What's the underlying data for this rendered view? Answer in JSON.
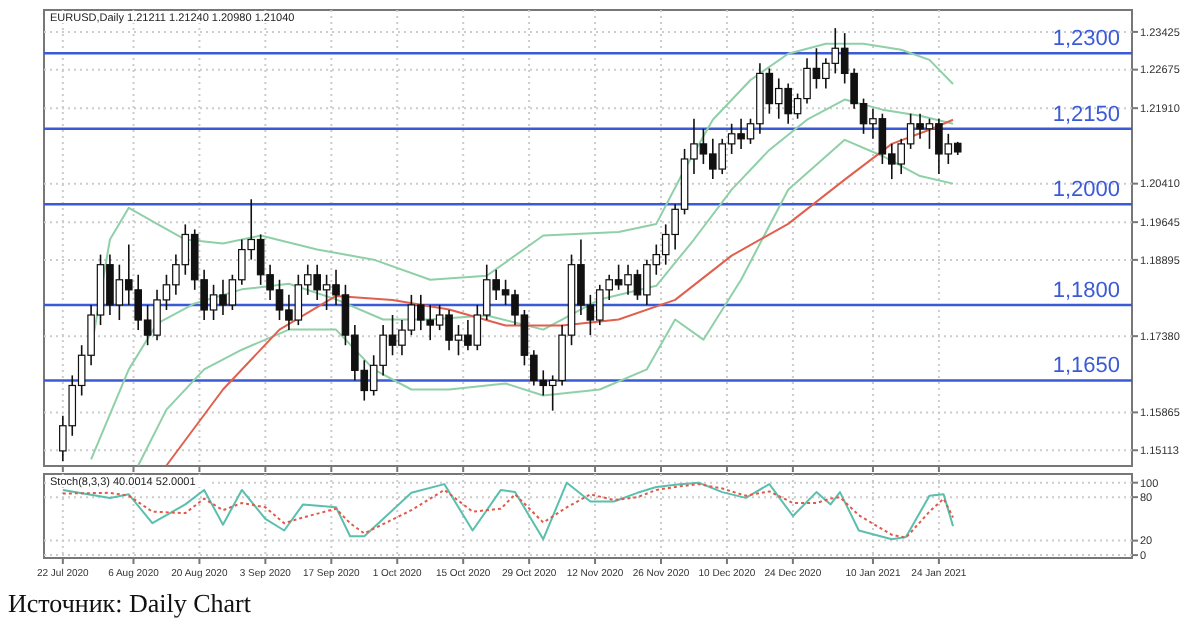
{
  "chart_data": [
    {
      "type": "candlestick",
      "title": "EURUSD,Daily 1.21211 1.21240 1.20980 1.21040",
      "x": [
        "2020-07-22",
        "2020-07-24",
        "2020-07-26",
        "2020-07-28",
        "2020-07-30",
        "2020-08-01",
        "2020-08-03",
        "2020-08-05",
        "2020-08-07",
        "2020-08-09",
        "2020-08-11",
        "2020-08-13",
        "2020-08-15",
        "2020-08-17",
        "2020-08-19",
        "2020-08-21",
        "2020-08-23",
        "2020-08-25",
        "2020-08-27",
        "2020-08-29",
        "2020-08-31",
        "2020-09-02",
        "2020-09-04",
        "2020-09-06",
        "2020-09-08",
        "2020-09-10",
        "2020-09-12",
        "2020-09-14",
        "2020-09-16",
        "2020-09-18",
        "2020-09-20",
        "2020-09-22",
        "2020-09-24",
        "2020-09-26",
        "2020-09-28",
        "2020-09-30",
        "2020-10-02",
        "2020-10-04",
        "2020-10-06",
        "2020-10-08",
        "2020-10-10",
        "2020-10-12",
        "2020-10-14",
        "2020-10-16",
        "2020-10-18",
        "2020-10-20",
        "2020-10-22",
        "2020-10-24",
        "2020-10-26",
        "2020-10-28",
        "2020-10-30",
        "2020-11-01",
        "2020-11-03",
        "2020-11-05",
        "2020-11-07",
        "2020-11-09",
        "2020-11-11",
        "2020-11-13",
        "2020-11-15",
        "2020-11-17",
        "2020-11-19",
        "2020-11-21",
        "2020-11-23",
        "2020-11-25",
        "2020-11-27",
        "2020-11-29",
        "2020-12-01",
        "2020-12-03",
        "2020-12-05",
        "2020-12-07",
        "2020-12-09",
        "2020-12-11",
        "2020-12-13",
        "2020-12-15",
        "2020-12-17",
        "2020-12-19",
        "2020-12-21",
        "2020-12-23",
        "2020-12-25",
        "2020-12-27",
        "2020-12-29",
        "2020-12-31",
        "2021-01-02",
        "2021-01-04",
        "2021-01-06",
        "2021-01-08",
        "2021-01-10",
        "2021-01-12",
        "2021-01-14",
        "2021-01-16",
        "2021-01-18",
        "2021-01-20",
        "2021-01-22",
        "2021-01-24",
        "2021-01-26",
        "2021-01-28"
      ],
      "ohlc": [
        [
          1.151,
          1.158,
          1.149,
          1.156
        ],
        [
          1.156,
          1.166,
          1.154,
          1.164
        ],
        [
          1.164,
          1.172,
          1.162,
          1.17
        ],
        [
          1.17,
          1.18,
          1.168,
          1.178
        ],
        [
          1.178,
          1.19,
          1.176,
          1.188
        ],
        [
          1.188,
          1.19,
          1.178,
          1.18
        ],
        [
          1.18,
          1.188,
          1.177,
          1.185
        ],
        [
          1.185,
          1.192,
          1.18,
          1.183
        ],
        [
          1.183,
          1.186,
          1.175,
          1.177
        ],
        [
          1.177,
          1.18,
          1.172,
          1.174
        ],
        [
          1.174,
          1.183,
          1.173,
          1.181
        ],
        [
          1.181,
          1.186,
          1.179,
          1.184
        ],
        [
          1.184,
          1.19,
          1.182,
          1.188
        ],
        [
          1.188,
          1.196,
          1.186,
          1.194
        ],
        [
          1.194,
          1.195,
          1.183,
          1.185
        ],
        [
          1.185,
          1.187,
          1.177,
          1.179
        ],
        [
          1.179,
          1.184,
          1.177,
          1.182
        ],
        [
          1.182,
          1.185,
          1.178,
          1.18
        ],
        [
          1.18,
          1.186,
          1.179,
          1.185
        ],
        [
          1.185,
          1.193,
          1.184,
          1.191
        ],
        [
          1.191,
          1.201,
          1.189,
          1.193
        ],
        [
          1.193,
          1.194,
          1.184,
          1.186
        ],
        [
          1.186,
          1.188,
          1.181,
          1.183
        ],
        [
          1.183,
          1.185,
          1.177,
          1.179
        ],
        [
          1.179,
          1.182,
          1.175,
          1.177
        ],
        [
          1.177,
          1.186,
          1.176,
          1.184
        ],
        [
          1.184,
          1.188,
          1.182,
          1.186
        ],
        [
          1.186,
          1.188,
          1.181,
          1.183
        ],
        [
          1.183,
          1.186,
          1.179,
          1.184
        ],
        [
          1.184,
          1.187,
          1.18,
          1.182
        ],
        [
          1.182,
          1.184,
          1.172,
          1.174
        ],
        [
          1.174,
          1.176,
          1.165,
          1.167
        ],
        [
          1.167,
          1.169,
          1.161,
          1.163
        ],
        [
          1.163,
          1.17,
          1.162,
          1.168
        ],
        [
          1.168,
          1.176,
          1.166,
          1.174
        ],
        [
          1.174,
          1.178,
          1.17,
          1.172
        ],
        [
          1.172,
          1.177,
          1.17,
          1.175
        ],
        [
          1.175,
          1.182,
          1.174,
          1.18
        ],
        [
          1.18,
          1.182,
          1.175,
          1.177
        ],
        [
          1.177,
          1.18,
          1.173,
          1.176
        ],
        [
          1.176,
          1.18,
          1.175,
          1.178
        ],
        [
          1.178,
          1.179,
          1.171,
          1.173
        ],
        [
          1.173,
          1.176,
          1.17,
          1.174
        ],
        [
          1.174,
          1.177,
          1.171,
          1.172
        ],
        [
          1.172,
          1.18,
          1.171,
          1.178
        ],
        [
          1.178,
          1.188,
          1.177,
          1.185
        ],
        [
          1.185,
          1.187,
          1.181,
          1.183
        ],
        [
          1.183,
          1.185,
          1.18,
          1.182
        ],
        [
          1.182,
          1.183,
          1.176,
          1.178
        ],
        [
          1.178,
          1.179,
          1.168,
          1.17
        ],
        [
          1.17,
          1.171,
          1.164,
          1.165
        ],
        [
          1.165,
          1.167,
          1.162,
          1.164
        ],
        [
          1.164,
          1.166,
          1.159,
          1.165
        ],
        [
          1.165,
          1.176,
          1.164,
          1.174
        ],
        [
          1.174,
          1.19,
          1.172,
          1.188
        ],
        [
          1.188,
          1.193,
          1.178,
          1.18
        ],
        [
          1.18,
          1.182,
          1.174,
          1.177
        ],
        [
          1.177,
          1.184,
          1.176,
          1.183
        ],
        [
          1.183,
          1.186,
          1.181,
          1.185
        ],
        [
          1.185,
          1.188,
          1.183,
          1.184
        ],
        [
          1.184,
          1.188,
          1.182,
          1.186
        ],
        [
          1.186,
          1.187,
          1.181,
          1.182
        ],
        [
          1.182,
          1.189,
          1.18,
          1.188
        ],
        [
          1.188,
          1.192,
          1.186,
          1.19
        ],
        [
          1.19,
          1.196,
          1.188,
          1.194
        ],
        [
          1.194,
          1.2,
          1.191,
          1.199
        ],
        [
          1.199,
          1.211,
          1.198,
          1.209
        ],
        [
          1.209,
          1.217,
          1.206,
          1.212
        ],
        [
          1.212,
          1.215,
          1.208,
          1.21
        ],
        [
          1.21,
          1.213,
          1.205,
          1.207
        ],
        [
          1.207,
          1.213,
          1.206,
          1.212
        ],
        [
          1.212,
          1.216,
          1.21,
          1.214
        ],
        [
          1.214,
          1.217,
          1.211,
          1.213
        ],
        [
          1.213,
          1.217,
          1.212,
          1.216
        ],
        [
          1.216,
          1.228,
          1.214,
          1.226
        ],
        [
          1.226,
          1.227,
          1.218,
          1.22
        ],
        [
          1.22,
          1.225,
          1.217,
          1.223
        ],
        [
          1.223,
          1.224,
          1.216,
          1.218
        ],
        [
          1.218,
          1.222,
          1.217,
          1.221
        ],
        [
          1.221,
          1.229,
          1.22,
          1.227
        ],
        [
          1.227,
          1.231,
          1.223,
          1.225
        ],
        [
          1.225,
          1.229,
          1.223,
          1.228
        ],
        [
          1.228,
          1.235,
          1.226,
          1.231
        ],
        [
          1.231,
          1.234,
          1.224,
          1.226
        ],
        [
          1.226,
          1.227,
          1.219,
          1.22
        ],
        [
          1.22,
          1.221,
          1.214,
          1.216
        ],
        [
          1.216,
          1.219,
          1.213,
          1.217
        ],
        [
          1.217,
          1.218,
          1.208,
          1.21
        ],
        [
          1.21,
          1.212,
          1.205,
          1.208
        ],
        [
          1.208,
          1.213,
          1.206,
          1.212
        ],
        [
          1.212,
          1.218,
          1.211,
          1.216
        ],
        [
          1.216,
          1.218,
          1.213,
          1.215
        ],
        [
          1.215,
          1.217,
          1.211,
          1.216
        ],
        [
          1.216,
          1.217,
          1.206,
          1.21
        ],
        [
          1.21,
          1.214,
          1.208,
          1.212
        ],
        [
          1.21211,
          1.2124,
          1.2098,
          1.2104
        ]
      ],
      "series": [
        {
          "type": "line",
          "color": "#8fd0a8",
          "x": [
            "2020-07-28",
            "2020-08-01",
            "2020-08-05",
            "2020-08-11",
            "2020-08-17",
            "2020-08-25",
            "2020-09-02",
            "2020-09-14",
            "2020-09-26",
            "2020-10-08",
            "2020-10-20",
            "2020-11-01",
            "2020-11-17",
            "2020-11-25",
            "2020-12-01",
            "2020-12-07",
            "2020-12-15",
            "2020-12-23",
            "2020-12-31",
            "2021-01-08",
            "2021-01-16",
            "2021-01-22",
            "2021-01-27"
          ],
          "values": [
            1.1711,
            1.193,
            1.1993,
            1.1961,
            1.193,
            1.1922,
            1.1938,
            1.191,
            1.189,
            1.185,
            1.1858,
            1.1938,
            1.1945,
            1.1961,
            1.2069,
            1.2168,
            1.2247,
            1.2299,
            1.2319,
            1.2319,
            1.2307,
            1.2287,
            1.2239
          ]
        },
        {
          "type": "line",
          "color": "#8fd0a8",
          "x": [
            "2020-07-28",
            "2020-08-05",
            "2020-08-11",
            "2020-08-19",
            "2020-08-29",
            "2020-09-08",
            "2020-09-18",
            "2020-09-28",
            "2020-10-08",
            "2020-10-20",
            "2020-11-01",
            "2020-11-13",
            "2020-11-25",
            "2020-12-03",
            "2020-12-11",
            "2020-12-19",
            "2020-12-27",
            "2021-01-04",
            "2021-01-12",
            "2021-01-20",
            "2021-01-27"
          ],
          "values": [
            1.1493,
            1.1672,
            1.1763,
            1.1803,
            1.1831,
            1.1842,
            1.1811,
            1.1771,
            1.1771,
            1.1779,
            1.1751,
            1.1811,
            1.1838,
            1.193,
            1.2029,
            1.2108,
            1.2168,
            1.2208,
            1.2188,
            1.2176,
            1.216
          ]
        },
        {
          "type": "line",
          "color": "#8fd0a8",
          "x": [
            "2020-08-07",
            "2020-08-13",
            "2020-08-21",
            "2020-08-29",
            "2020-09-08",
            "2020-09-18",
            "2020-09-26",
            "2020-10-04",
            "2020-10-12",
            "2020-10-24",
            "2020-11-01",
            "2020-11-13",
            "2020-11-23",
            "2020-11-29",
            "2020-12-05",
            "2020-12-13",
            "2020-12-23",
            "2021-01-04",
            "2021-01-12",
            "2021-01-20",
            "2021-01-27"
          ],
          "values": [
            1.1481,
            1.1592,
            1.1672,
            1.1711,
            1.1751,
            1.1751,
            1.1672,
            1.1632,
            1.1632,
            1.1644,
            1.162,
            1.1632,
            1.1672,
            1.1771,
            1.1731,
            1.185,
            1.2029,
            1.2128,
            1.2096,
            1.2056,
            1.2041
          ]
        },
        {
          "type": "line",
          "color": "#e0604f",
          "x": [
            "2020-08-13",
            "2020-08-25",
            "2020-09-06",
            "2020-09-18",
            "2020-09-30",
            "2020-10-12",
            "2020-10-24",
            "2020-11-05",
            "2020-11-17",
            "2020-11-29",
            "2020-12-11",
            "2020-12-23",
            "2021-01-04",
            "2021-01-14",
            "2021-01-22",
            "2021-01-27"
          ],
          "values": [
            1.1481,
            1.1632,
            1.1751,
            1.1818,
            1.181,
            1.1791,
            1.1759,
            1.1759,
            1.1771,
            1.181,
            1.1898,
            1.1961,
            1.2049,
            1.212,
            1.2148,
            1.2168
          ]
        }
      ],
      "xlim": [
        "2020-07-18",
        "2021-03-06"
      ],
      "xticks": [
        {
          "value": "2020-07-22",
          "label": null
        },
        {
          "value": "2020-08-06",
          "label": null
        },
        {
          "value": "2020-08-20",
          "label": null
        },
        {
          "value": "2020-09-03",
          "label": null
        },
        {
          "value": "2020-09-17",
          "label": null
        },
        {
          "value": "2020-10-01",
          "label": null
        },
        {
          "value": "2020-10-15",
          "label": null
        },
        {
          "value": "2020-10-29",
          "label": null
        },
        {
          "value": "2020-11-12",
          "label": null
        },
        {
          "value": "2020-11-26",
          "label": null
        },
        {
          "value": "2020-12-10",
          "label": null
        },
        {
          "value": "2020-12-24",
          "label": null
        },
        {
          "value": "2021-01-10",
          "label": null
        },
        {
          "value": "2021-01-24",
          "label": null
        }
      ],
      "ylim": [
        1.148,
        1.2386
      ],
      "yticks": [
        {
          "value": 1.23425,
          "label": "1.23425"
        },
        {
          "value": 1.22675,
          "label": "1.22675"
        },
        {
          "value": 1.2191,
          "label": "1.21910"
        },
        {
          "value": 1.2041,
          "label": "1.20410"
        },
        {
          "value": 1.19645,
          "label": "1.19645"
        },
        {
          "value": 1.18895,
          "label": "1.18895"
        },
        {
          "value": 1.1738,
          "label": "1.17380"
        },
        {
          "value": 1.15865,
          "label": "1.15865"
        },
        {
          "value": 1.15113,
          "label": "1.15113"
        }
      ],
      "ref_lines": [
        {
          "axis": "y",
          "value": 1.23,
          "label": "1,2300",
          "color": "#3b5bd6"
        },
        {
          "axis": "y",
          "value": 1.215,
          "label": "1,2150",
          "color": "#3b5bd6"
        },
        {
          "axis": "y",
          "value": 1.2,
          "label": "1,2000",
          "color": "#3b5bd6"
        },
        {
          "axis": "y",
          "value": 1.18,
          "label": "1,1800",
          "color": "#3b5bd6"
        },
        {
          "axis": "y",
          "value": 1.165,
          "label": "1,1650",
          "color": "#3b5bd6"
        }
      ],
      "grid": true,
      "tick_labels": "y"
    },
    {
      "type": "line",
      "title": "Stoch(8,3,3) 40.0014 52.0001",
      "series": [
        {
          "color": "#5bbfae",
          "line_style": "solid",
          "x": [
            "2020-07-22",
            "2020-08-01",
            "2020-08-05",
            "2020-08-10",
            "2020-08-17",
            "2020-08-21",
            "2020-08-25",
            "2020-08-29",
            "2020-09-03",
            "2020-09-07",
            "2020-09-11",
            "2020-09-18",
            "2020-09-21",
            "2020-09-24",
            "2020-10-04",
            "2020-10-11",
            "2020-10-17",
            "2020-10-23",
            "2020-10-26",
            "2020-11-01",
            "2020-11-06",
            "2020-11-11",
            "2020-11-16",
            "2020-11-21",
            "2020-11-25",
            "2020-11-30",
            "2020-12-04",
            "2020-12-09",
            "2020-12-14",
            "2020-12-19",
            "2020-12-24",
            "2020-12-29",
            "2021-01-01",
            "2021-01-03",
            "2021-01-07",
            "2021-01-14",
            "2021-01-17",
            "2021-01-22",
            "2021-01-25",
            "2021-01-27"
          ],
          "values": [
            90,
            79,
            84,
            44,
            70,
            90,
            42,
            90,
            50,
            34,
            70,
            66,
            26,
            26,
            86,
            98,
            34,
            90,
            87,
            22,
            100,
            74,
            74,
            86,
            94,
            98,
            100,
            87,
            79,
            98,
            54,
            87,
            70,
            87,
            34,
            22,
            25,
            82,
            84,
            40
          ]
        },
        {
          "color": "#e05a4a",
          "line_style": "dotted",
          "x": [
            "2020-07-22",
            "2020-08-01",
            "2020-08-05",
            "2020-08-10",
            "2020-08-17",
            "2020-08-21",
            "2020-08-25",
            "2020-08-29",
            "2020-09-03",
            "2020-09-07",
            "2020-09-11",
            "2020-09-18",
            "2020-09-21",
            "2020-09-24",
            "2020-10-04",
            "2020-10-11",
            "2020-10-17",
            "2020-10-23",
            "2020-10-26",
            "2020-11-01",
            "2020-11-06",
            "2020-11-11",
            "2020-11-16",
            "2020-11-21",
            "2020-11-25",
            "2020-11-30",
            "2020-12-04",
            "2020-12-09",
            "2020-12-14",
            "2020-12-19",
            "2020-12-24",
            "2020-12-29",
            "2021-01-01",
            "2021-01-03",
            "2021-01-07",
            "2021-01-14",
            "2021-01-17",
            "2021-01-22",
            "2021-01-25",
            "2021-01-27"
          ],
          "values": [
            85,
            86,
            82,
            60,
            58,
            78,
            62,
            72,
            66,
            44,
            52,
            64,
            44,
            30,
            62,
            90,
            60,
            64,
            84,
            45,
            66,
            84,
            76,
            80,
            90,
            95,
            98,
            92,
            82,
            88,
            72,
            72,
            78,
            80,
            55,
            28,
            24,
            60,
            78,
            52
          ]
        }
      ],
      "xlim": [
        "2020-07-18",
        "2021-03-06"
      ],
      "xticks": [
        {
          "value": "2020-07-22",
          "label": "22 Jul 2020"
        },
        {
          "value": "2020-08-06",
          "label": "6 Aug 2020"
        },
        {
          "value": "2020-08-20",
          "label": "20 Aug 2020"
        },
        {
          "value": "2020-09-03",
          "label": "3 Sep 2020"
        },
        {
          "value": "2020-09-17",
          "label": "17 Sep 2020"
        },
        {
          "value": "2020-10-01",
          "label": "1 Oct 2020"
        },
        {
          "value": "2020-10-15",
          "label": "15 Oct 2020"
        },
        {
          "value": "2020-10-29",
          "label": "29 Oct 2020"
        },
        {
          "value": "2020-11-12",
          "label": "12 Nov 2020"
        },
        {
          "value": "2020-11-26",
          "label": "26 Nov 2020"
        },
        {
          "value": "2020-12-10",
          "label": "10 Dec 2020"
        },
        {
          "value": "2020-12-24",
          "label": "24 Dec 2020"
        },
        {
          "value": "2021-01-10",
          "label": "10 Jan 2021"
        },
        {
          "value": "2021-01-24",
          "label": "24 Jan 2021"
        }
      ],
      "ylim": [
        -4,
        112
      ],
      "yticks": [
        0,
        20,
        80,
        100
      ],
      "grid": true,
      "annotations": [
        "Источник: Daily Chart"
      ]
    }
  ]
}
